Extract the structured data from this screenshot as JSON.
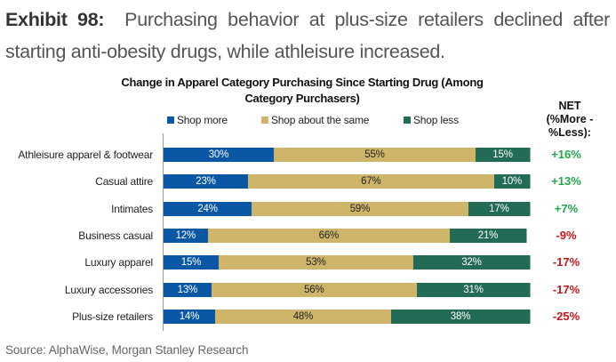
{
  "exhibit": {
    "label": "Exhibit 98:",
    "text": "Purchasing behavior at plus-size retailers declined after starting anti-obesity drugs, while athleisure increased."
  },
  "source": "Source: AlphaWise, Morgan Stanley Research",
  "net_header": [
    "NET",
    "(%More -",
    "%Less):"
  ],
  "colors": {
    "shop_more": "#0a58a5",
    "shop_same": "#cfb56a",
    "shop_less": "#226b57",
    "net_positive": "#1fa84a",
    "net_negative": "#c4161c"
  },
  "chart_data": {
    "type": "bar",
    "orientation": "horizontal",
    "stacked": true,
    "title": "Change in Apparel Category Purchasing Since Starting Drug (Among Category Purchasers)",
    "xlabel": "",
    "ylabel": "",
    "xlim": [
      0,
      100
    ],
    "grid": false,
    "legend_position": "top",
    "legend": [
      "Shop more",
      "Shop about the same",
      "Shop less"
    ],
    "categories": [
      "Athleisure apparel & footwear",
      "Casual attire",
      "Intimates",
      "Business casual",
      "Luxury apparel",
      "Luxury accessories",
      "Plus-size retailers"
    ],
    "series": [
      {
        "name": "Shop more",
        "values": [
          30,
          23,
          24,
          12,
          15,
          13,
          14
        ]
      },
      {
        "name": "Shop about the same",
        "values": [
          55,
          67,
          59,
          66,
          53,
          56,
          48
        ]
      },
      {
        "name": "Shop less",
        "values": [
          15,
          10,
          17,
          21,
          32,
          31,
          38
        ]
      }
    ],
    "net_values": [
      "+16%",
      "+13%",
      "+7%",
      "-9%",
      "-17%",
      "-17%",
      "-25%"
    ]
  }
}
